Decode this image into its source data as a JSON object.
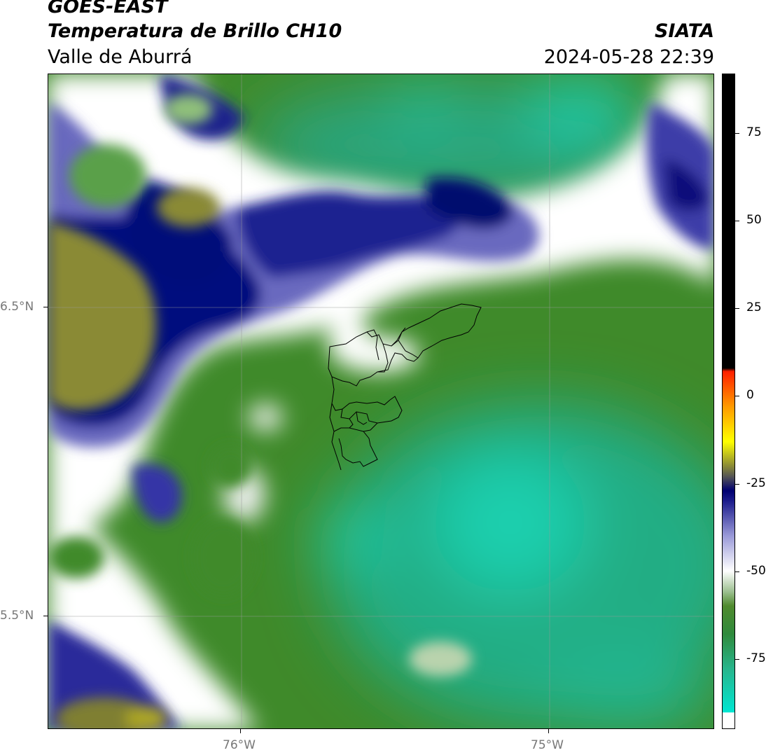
{
  "header": {
    "satellite": "GOES-EAST",
    "product": "Temperatura de Brillo CH10",
    "region": "Valle de Aburrá",
    "institution": "SIATA",
    "datetime": "2024-05-28 22:39"
  },
  "map": {
    "lon_ticks": [
      "76°W",
      "75°W"
    ],
    "lat_ticks": [
      "6.5°N",
      "5.5°N"
    ],
    "lon_range": [
      -76.62,
      -74.46
    ],
    "lat_range": [
      5.14,
      7.25
    ],
    "gridlines": true,
    "overlay": "municipal boundaries of Valle de Aburrá",
    "palette": {
      "warm_green": "#3f8a2a",
      "cyan": "#1fcfaa",
      "white": "#ffffff",
      "lavender": "#9a9ad8",
      "navy": "#0a0f7a",
      "olive": "#8a8a36"
    }
  },
  "colorbar": {
    "labels": [
      "75",
      "50",
      "25",
      "0",
      "-25",
      "-50",
      "-75"
    ],
    "values": [
      75,
      50,
      25,
      0,
      -25,
      -50,
      -75
    ],
    "range": [
      -95,
      92
    ],
    "stops": [
      {
        "v": -95,
        "c": "#ffffff"
      },
      {
        "v": -90.5,
        "c": "#ffffff"
      },
      {
        "v": -90.4,
        "c": "#00e6d2"
      },
      {
        "v": -78,
        "c": "#27b58c"
      },
      {
        "v": -68,
        "c": "#2f8a3c"
      },
      {
        "v": -60,
        "c": "#4f8a2e"
      },
      {
        "v": -56,
        "c": "#9bbf8f"
      },
      {
        "v": -50,
        "c": "#ffffff"
      },
      {
        "v": -40,
        "c": "#9a9ad8"
      },
      {
        "v": -30,
        "c": "#1c1c8c"
      },
      {
        "v": -27,
        "c": "#000070"
      },
      {
        "v": -23,
        "c": "#555555"
      },
      {
        "v": -20,
        "c": "#8a8a36"
      },
      {
        "v": -13,
        "c": "#ffff00"
      },
      {
        "v": -3,
        "c": "#ff9a00"
      },
      {
        "v": 7,
        "c": "#ff2000"
      },
      {
        "v": 8,
        "c": "#000000"
      },
      {
        "v": 92,
        "c": "#000000"
      }
    ]
  }
}
